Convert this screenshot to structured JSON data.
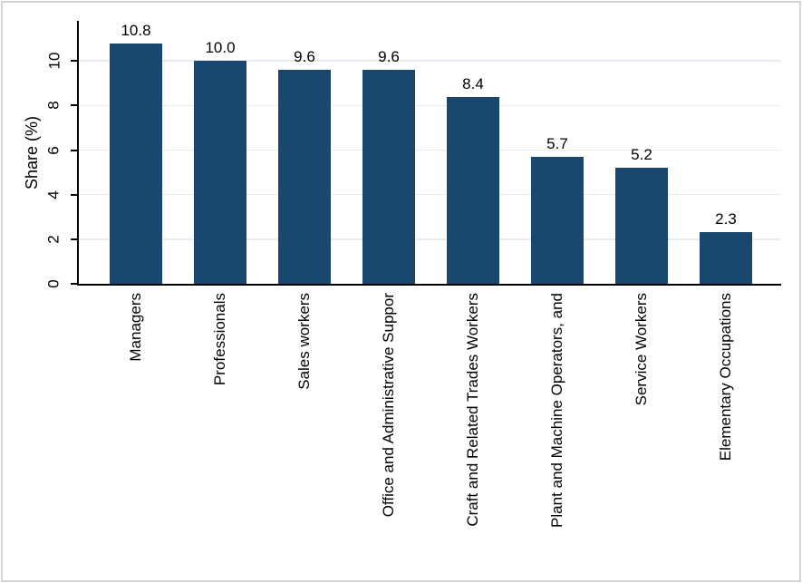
{
  "chart_data": {
    "type": "bar",
    "title": "",
    "xlabel": "",
    "ylabel": "Share (%)",
    "categories": [
      "Managers",
      "Professionals",
      "Sales workers",
      "Office and Administrative Suppor",
      "Craft and Related Trades Workers",
      "Plant and Machine Operators, and",
      "Service Workers",
      "Elementary Occupations"
    ],
    "values": [
      10.8,
      10.0,
      9.6,
      9.6,
      8.4,
      5.7,
      5.2,
      2.3
    ],
    "value_labels": [
      "10.8",
      "10.0",
      "9.6",
      "9.6",
      "8.4",
      "5.7",
      "5.2",
      "2.3"
    ],
    "yticks": [
      0,
      2,
      4,
      6,
      8,
      10
    ],
    "ylim": [
      0,
      11.8
    ],
    "grid": "horizontal",
    "legend": "none",
    "x_tick_label_rotation": -90,
    "y_tick_label_rotation": -90,
    "colors": {
      "bar": "#1a476f",
      "gridline": "#e6ecf3",
      "axis": "#000000",
      "text": "#000000",
      "background": "#ffffff",
      "figure_border": "#d4d4d4"
    }
  }
}
